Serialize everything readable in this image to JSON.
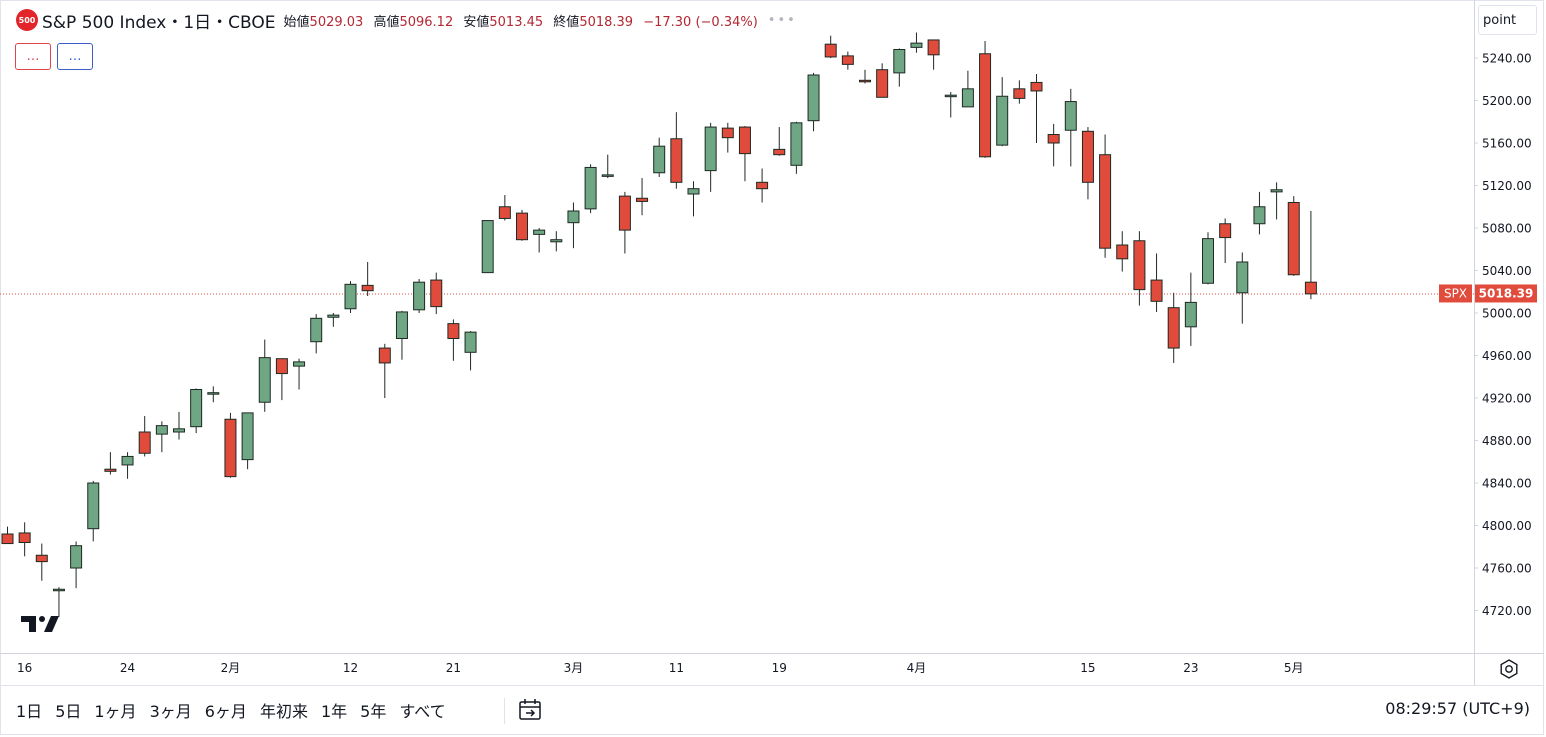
{
  "header": {
    "badge": "500",
    "title": "S&P 500 Index・1日・CBOE",
    "open_label": "始値",
    "open": "5029.03",
    "high_label": "高値",
    "high": "5096.12",
    "low_label": "安値",
    "low": "5013.45",
    "close_label": "終値",
    "close": "5018.39",
    "change": "−17.30 (−0.34%)"
  },
  "indicators": {
    "red_label": "…",
    "blue_label": "…"
  },
  "unit_button": "point",
  "price_tag": {
    "symbol": "SPX",
    "value": "5018.39"
  },
  "range_buttons": [
    "1日",
    "5日",
    "1ヶ月",
    "3ヶ月",
    "6ヶ月",
    "年初来",
    "1年",
    "5年",
    "すべて"
  ],
  "clock": "08:29:57 (UTC+9)",
  "colors": {
    "up": "#6fa683",
    "down": "#e04b3c",
    "outline": "#1e2a24",
    "tag": "#e04b3c"
  },
  "icons": [
    "tradingview-logo-icon",
    "calendar-range-icon",
    "settings-gear-icon"
  ],
  "chart_data": {
    "type": "candlestick",
    "y_ticks": [
      4720,
      4760,
      4800,
      4840,
      4880,
      4920,
      4960,
      5000,
      5040,
      5080,
      5120,
      5160,
      5200,
      5240
    ],
    "ylim": [
      4690,
      5282
    ],
    "last_price": 5018.39,
    "x_labels": [
      {
        "i": 1,
        "label": "16"
      },
      {
        "i": 7,
        "label": "24"
      },
      {
        "i": 13,
        "label": "2月"
      },
      {
        "i": 20,
        "label": "12"
      },
      {
        "i": 26,
        "label": "21"
      },
      {
        "i": 33,
        "label": "3月"
      },
      {
        "i": 39,
        "label": "11"
      },
      {
        "i": 45,
        "label": "19"
      },
      {
        "i": 53,
        "label": "4月"
      },
      {
        "i": 63,
        "label": "15"
      },
      {
        "i": 69,
        "label": "23"
      },
      {
        "i": 75,
        "label": "5月"
      }
    ],
    "candles": [
      {
        "d": "01-11",
        "o": 4792,
        "h": 4799,
        "l": 4784,
        "c": 4783
      },
      {
        "d": "01-12",
        "o": 4793,
        "h": 4803,
        "l": 4771,
        "c": 4784
      },
      {
        "d": "01-16",
        "o": 4772,
        "h": 4783,
        "l": 4748,
        "c": 4766
      },
      {
        "d": "01-17",
        "o": 4739,
        "h": 4742,
        "l": 4714,
        "c": 4740
      },
      {
        "d": "01-18",
        "o": 4760,
        "h": 4785,
        "l": 4741,
        "c": 4781
      },
      {
        "d": "01-19",
        "o": 4797,
        "h": 4842,
        "l": 4785,
        "c": 4840
      },
      {
        "d": "01-22",
        "o": 4853,
        "h": 4869,
        "l": 4848,
        "c": 4851
      },
      {
        "d": "01-23",
        "o": 4857,
        "h": 4869,
        "l": 4844,
        "c": 4865
      },
      {
        "d": "01-24",
        "o": 4888,
        "h": 4903,
        "l": 4865,
        "c": 4868
      },
      {
        "d": "01-25",
        "o": 4886,
        "h": 4898,
        "l": 4869,
        "c": 4894
      },
      {
        "d": "01-26",
        "o": 4888,
        "h": 4907,
        "l": 4881,
        "c": 4891
      },
      {
        "d": "01-29",
        "o": 4893,
        "h": 4929,
        "l": 4887,
        "c": 4928
      },
      {
        "d": "01-30",
        "o": 4925,
        "h": 4931,
        "l": 4916,
        "c": 4925
      },
      {
        "d": "01-31",
        "o": 4900,
        "h": 4906,
        "l": 4845,
        "c": 4846
      },
      {
        "d": "02-01",
        "o": 4862,
        "h": 4906,
        "l": 4853,
        "c": 4906
      },
      {
        "d": "02-02",
        "o": 4916,
        "h": 4975,
        "l": 4907,
        "c": 4958
      },
      {
        "d": "02-05",
        "o": 4957,
        "h": 4957,
        "l": 4918,
        "c": 4943
      },
      {
        "d": "02-06",
        "o": 4950,
        "h": 4957,
        "l": 4928,
        "c": 4954
      },
      {
        "d": "02-07",
        "o": 4973,
        "h": 4999,
        "l": 4962,
        "c": 4995
      },
      {
        "d": "02-08",
        "o": 4996,
        "h": 5000,
        "l": 4987,
        "c": 4998
      },
      {
        "d": "02-09",
        "o": 5004,
        "h": 5030,
        "l": 5000,
        "c": 5027
      },
      {
        "d": "02-12",
        "o": 5026,
        "h": 5048,
        "l": 5016,
        "c": 5021
      },
      {
        "d": "02-13",
        "o": 4967,
        "h": 4971,
        "l": 4920,
        "c": 4953
      },
      {
        "d": "02-14",
        "o": 4976,
        "h": 5002,
        "l": 4956,
        "c": 5001
      },
      {
        "d": "02-15",
        "o": 5003,
        "h": 5032,
        "l": 5000,
        "c": 5029
      },
      {
        "d": "02-16",
        "o": 5031,
        "h": 5038,
        "l": 4999,
        "c": 5006
      },
      {
        "d": "02-20",
        "o": 4990,
        "h": 4994,
        "l": 4955,
        "c": 4976
      },
      {
        "d": "02-21",
        "o": 4963,
        "h": 4983,
        "l": 4946,
        "c": 4982
      },
      {
        "d": "02-22",
        "o": 5038,
        "h": 5087,
        "l": 5038,
        "c": 5087
      },
      {
        "d": "02-23",
        "o": 5100,
        "h": 5111,
        "l": 5087,
        "c": 5089
      },
      {
        "d": "02-26",
        "o": 5094,
        "h": 5097,
        "l": 5068,
        "c": 5069
      },
      {
        "d": "02-27",
        "o": 5074,
        "h": 5080,
        "l": 5057,
        "c": 5078
      },
      {
        "d": "02-28",
        "o": 5067,
        "h": 5077,
        "l": 5058,
        "c": 5069
      },
      {
        "d": "02-29",
        "o": 5085,
        "h": 5104,
        "l": 5061,
        "c": 5096
      },
      {
        "d": "03-01",
        "o": 5098,
        "h": 5140,
        "l": 5094,
        "c": 5137
      },
      {
        "d": "03-04",
        "o": 5130,
        "h": 5149,
        "l": 5127,
        "c": 5130
      },
      {
        "d": "03-05",
        "o": 5110,
        "h": 5114,
        "l": 5056,
        "c": 5078
      },
      {
        "d": "03-06",
        "o": 5108,
        "h": 5127,
        "l": 5092,
        "c": 5105
      },
      {
        "d": "03-07",
        "o": 5132,
        "h": 5165,
        "l": 5128,
        "c": 5157
      },
      {
        "d": "03-08",
        "o": 5164,
        "h": 5189,
        "l": 5117,
        "c": 5123
      },
      {
        "d": "03-11",
        "o": 5112,
        "h": 5124,
        "l": 5091,
        "c": 5117
      },
      {
        "d": "03-12",
        "o": 5134,
        "h": 5179,
        "l": 5114,
        "c": 5175
      },
      {
        "d": "03-13",
        "o": 5174,
        "h": 5179,
        "l": 5151,
        "c": 5165
      },
      {
        "d": "03-14",
        "o": 5175,
        "h": 5176,
        "l": 5124,
        "c": 5150
      },
      {
        "d": "03-15",
        "o": 5123,
        "h": 5136,
        "l": 5104,
        "c": 5117
      },
      {
        "d": "03-18",
        "o": 5154,
        "h": 5175,
        "l": 5148,
        "c": 5149
      },
      {
        "d": "03-19",
        "o": 5139,
        "h": 5180,
        "l": 5131,
        "c": 5179
      },
      {
        "d": "03-20",
        "o": 5181,
        "h": 5226,
        "l": 5171,
        "c": 5224
      },
      {
        "d": "03-21",
        "o": 5253,
        "h": 5261,
        "l": 5240,
        "c": 5241
      },
      {
        "d": "03-22",
        "o": 5242,
        "h": 5246,
        "l": 5229,
        "c": 5234
      },
      {
        "d": "03-25",
        "o": 5219,
        "h": 5229,
        "l": 5216,
        "c": 5218
      },
      {
        "d": "03-26",
        "o": 5229,
        "h": 5235,
        "l": 5203,
        "c": 5203
      },
      {
        "d": "03-27",
        "o": 5226,
        "h": 5249,
        "l": 5213,
        "c": 5248
      },
      {
        "d": "03-28",
        "o": 5250,
        "h": 5264,
        "l": 5245,
        "c": 5254
      },
      {
        "d": "04-01",
        "o": 5257,
        "h": 5257,
        "l": 5229,
        "c": 5243
      },
      {
        "d": "04-02",
        "o": 5204,
        "h": 5208,
        "l": 5184,
        "c": 5205
      },
      {
        "d": "04-03",
        "o": 5194,
        "h": 5228,
        "l": 5194,
        "c": 5211
      },
      {
        "d": "04-04",
        "o": 5244,
        "h": 5256,
        "l": 5146,
        "c": 5147
      },
      {
        "d": "04-05",
        "o": 5158,
        "h": 5222,
        "l": 5157,
        "c": 5204
      },
      {
        "d": "04-08",
        "o": 5211,
        "h": 5219,
        "l": 5197,
        "c": 5202
      },
      {
        "d": "04-09",
        "o": 5217,
        "h": 5225,
        "l": 5160,
        "c": 5209
      },
      {
        "d": "04-10",
        "o": 5168,
        "h": 5178,
        "l": 5138,
        "c": 5160
      },
      {
        "d": "04-11",
        "o": 5172,
        "h": 5211,
        "l": 5138,
        "c": 5199
      },
      {
        "d": "04-12",
        "o": 5171,
        "h": 5175,
        "l": 5107,
        "c": 5123
      },
      {
        "d": "04-15",
        "o": 5149,
        "h": 5168,
        "l": 5052,
        "c": 5061
      },
      {
        "d": "04-16",
        "o": 5064,
        "h": 5077,
        "l": 5039,
        "c": 5051
      },
      {
        "d": "04-17",
        "o": 5068,
        "h": 5077,
        "l": 5007,
        "c": 5022
      },
      {
        "d": "04-18",
        "o": 5031,
        "h": 5056,
        "l": 5001,
        "c": 5011
      },
      {
        "d": "04-19",
        "o": 5005,
        "h": 5019,
        "l": 4953,
        "c": 4967
      },
      {
        "d": "04-22",
        "o": 4987,
        "h": 5038,
        "l": 4969,
        "c": 5010
      },
      {
        "d": "04-23",
        "o": 5028,
        "h": 5076,
        "l": 5027,
        "c": 5070
      },
      {
        "d": "04-24",
        "o": 5084,
        "h": 5089,
        "l": 5047,
        "c": 5071
      },
      {
        "d": "04-25",
        "o": 5019,
        "h": 5057,
        "l": 4990,
        "c": 5048
      },
      {
        "d": "04-26",
        "o": 5084,
        "h": 5114,
        "l": 5074,
        "c": 5100
      },
      {
        "d": "04-29",
        "o": 5114,
        "h": 5123,
        "l": 5088,
        "c": 5116
      },
      {
        "d": "04-30",
        "o": 5104,
        "h": 5110,
        "l": 5035,
        "c": 5036
      },
      {
        "d": "05-01",
        "o": 5029,
        "h": 5096,
        "l": 5013,
        "c": 5018
      }
    ]
  }
}
